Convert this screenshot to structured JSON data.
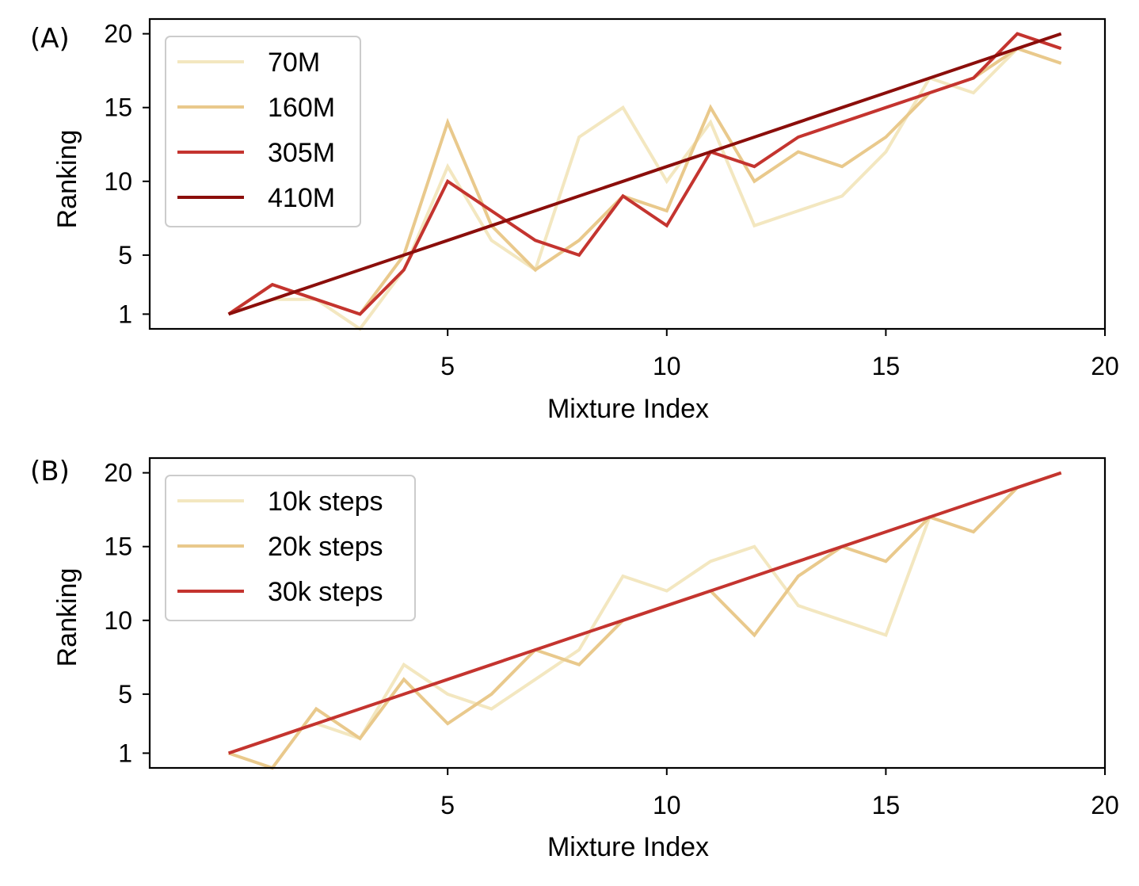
{
  "chart_data": [
    {
      "type": "line",
      "panel_label": "(A)",
      "xlabel": "Mixture Index",
      "ylabel": "Ranking",
      "xlim": [
        -1.8,
        20
      ],
      "ylim": [
        0,
        21
      ],
      "xticks": [
        5,
        10,
        15,
        20
      ],
      "yticks": [
        1,
        5,
        10,
        15,
        20
      ],
      "grid": false,
      "legend_position": "upper-left",
      "x": [
        0,
        1,
        2,
        3,
        4,
        5,
        6,
        7,
        8,
        9,
        10,
        11,
        12,
        13,
        14,
        15,
        16,
        17,
        18,
        19
      ],
      "series": [
        {
          "name": "70M",
          "color": "#f3e7c0",
          "values": [
            1,
            2,
            2,
            0,
            4,
            11,
            6,
            4,
            13,
            15,
            10,
            14,
            7,
            8,
            9,
            12,
            17,
            16,
            19,
            18
          ]
        },
        {
          "name": "160M",
          "color": "#e9c98c",
          "values": [
            1,
            3,
            2,
            1,
            5,
            14,
            7,
            4,
            6,
            9,
            8,
            15,
            10,
            12,
            11,
            13,
            16,
            17,
            19,
            18
          ]
        },
        {
          "name": "305M",
          "color": "#c4342f",
          "values": [
            1,
            3,
            2,
            1,
            4,
            10,
            8,
            6,
            5,
            9,
            7,
            12,
            11,
            13,
            14,
            15,
            16,
            17,
            20,
            19
          ]
        },
        {
          "name": "410M",
          "color": "#8b0e0b",
          "values": [
            1,
            2,
            3,
            4,
            5,
            6,
            7,
            8,
            9,
            10,
            11,
            12,
            13,
            14,
            15,
            16,
            17,
            18,
            19,
            20
          ]
        }
      ]
    },
    {
      "type": "line",
      "panel_label": "(B)",
      "xlabel": "Mixture Index",
      "ylabel": "Ranking",
      "xlim": [
        -1.8,
        20
      ],
      "ylim": [
        0,
        21
      ],
      "xticks": [
        5,
        10,
        15,
        20
      ],
      "yticks": [
        1,
        5,
        10,
        15,
        20
      ],
      "grid": false,
      "legend_position": "upper-left",
      "x": [
        0,
        1,
        2,
        3,
        4,
        5,
        6,
        7,
        8,
        9,
        10,
        11,
        12,
        13,
        14,
        15,
        16,
        17,
        18,
        19
      ],
      "series": [
        {
          "name": "10k steps",
          "color": "#f3e7c0",
          "values": [
            1,
            2,
            3,
            2,
            7,
            5,
            4,
            6,
            8,
            13,
            12,
            14,
            15,
            11,
            10,
            9,
            17,
            16,
            19,
            20
          ]
        },
        {
          "name": "20k steps",
          "color": "#e9c98c",
          "values": [
            1,
            0,
            4,
            2,
            6,
            3,
            5,
            8,
            7,
            10,
            11,
            12,
            9,
            13,
            15,
            14,
            17,
            16,
            19,
            20
          ]
        },
        {
          "name": "30k steps",
          "color": "#c4342f",
          "values": [
            1,
            2,
            3,
            4,
            5,
            6,
            7,
            8,
            9,
            10,
            11,
            12,
            13,
            14,
            15,
            16,
            17,
            18,
            19,
            20
          ]
        }
      ]
    }
  ]
}
